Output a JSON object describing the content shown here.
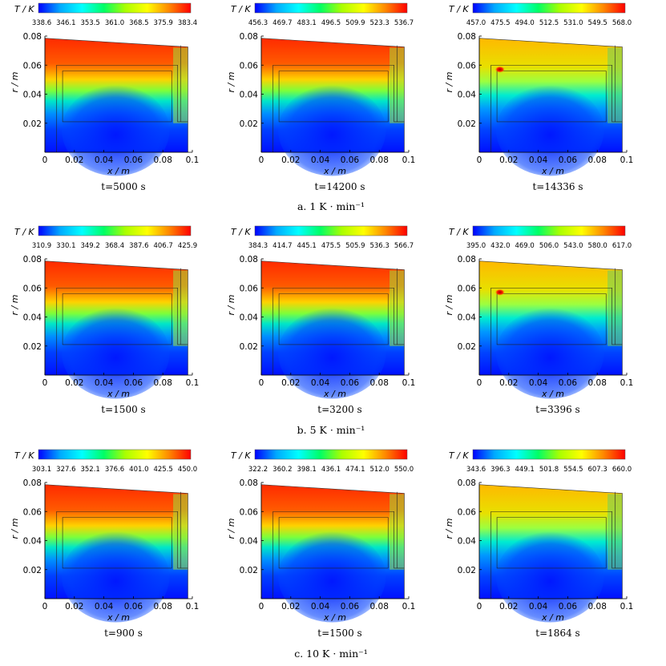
{
  "rows": [
    {
      "caption": "a. 1 K · min⁻¹",
      "panels": [
        {
          "cbar_title": "T / K",
          "ticks": [
            "338.6",
            "346.1",
            "353.5",
            "361.0",
            "368.5",
            "375.9",
            "383.4"
          ],
          "time": "t=5000 s",
          "hot_intensity": 1.0,
          "cold_intensity": 1.0
        },
        {
          "cbar_title": "T / K",
          "ticks": [
            "456.3",
            "469.7",
            "483.1",
            "496.5",
            "509.9",
            "523.3",
            "536.7"
          ],
          "time": "t=14200 s",
          "hot_intensity": 1.0,
          "cold_intensity": 1.0
        },
        {
          "cbar_title": "T / K",
          "ticks": [
            "457.0",
            "475.5",
            "494.0",
            "512.5",
            "531.0",
            "549.5",
            "568.0"
          ],
          "time": "t=14336 s",
          "hot_intensity": 0.35,
          "cold_intensity": 1.0,
          "hotspot": true
        }
      ]
    },
    {
      "caption": "b. 5 K · min⁻¹",
      "panels": [
        {
          "cbar_title": "T / K",
          "ticks": [
            "310.9",
            "330.1",
            "349.2",
            "368.4",
            "387.6",
            "406.7",
            "425.9"
          ],
          "time": "t=1500 s",
          "hot_intensity": 1.0,
          "cold_intensity": 1.0
        },
        {
          "cbar_title": "T / K",
          "ticks": [
            "384.3",
            "414.7",
            "445.1",
            "475.5",
            "505.9",
            "536.3",
            "566.7"
          ],
          "time": "t=3200 s",
          "hot_intensity": 1.0,
          "cold_intensity": 1.0
        },
        {
          "cbar_title": "T / K",
          "ticks": [
            "395.0",
            "432.0",
            "469.0",
            "506.0",
            "543.0",
            "580.0",
            "617.0"
          ],
          "time": "t=3396 s",
          "hot_intensity": 0.45,
          "cold_intensity": 1.0,
          "hotspot": true
        }
      ]
    },
    {
      "caption": "c. 10 K · min⁻¹",
      "panels": [
        {
          "cbar_title": "T / K",
          "ticks": [
            "303.1",
            "327.6",
            "352.1",
            "376.6",
            "401.0",
            "425.5",
            "450.0"
          ],
          "time": "t=900 s",
          "hot_intensity": 1.0,
          "cold_intensity": 1.0
        },
        {
          "cbar_title": "T / K",
          "ticks": [
            "322.2",
            "360.2",
            "398.1",
            "436.1",
            "474.1",
            "512.0",
            "550.0"
          ],
          "time": "t=1500 s",
          "hot_intensity": 1.0,
          "cold_intensity": 1.0
        },
        {
          "cbar_title": "T / K",
          "ticks": [
            "343.6",
            "396.3",
            "449.1",
            "501.8",
            "554.5",
            "607.3",
            "660.0"
          ],
          "time": "t=1864 s",
          "hot_intensity": 0.45,
          "cold_intensity": 1.0
        }
      ]
    }
  ],
  "chart_data": {
    "type": "heatmap",
    "xlabel": "x / m",
    "ylabel": "r / m",
    "xticks": [
      "0",
      "0.02",
      "0.04",
      "0.06",
      "0.08",
      "0.1"
    ],
    "yticks": [
      "0.02",
      "0.04",
      "0.06",
      "0.08"
    ],
    "xlim": [
      0,
      0.1
    ],
    "ylim": [
      0,
      0.08
    ],
    "colormap": [
      "#0000ff",
      "#00aaff",
      "#00ffff",
      "#00ff66",
      "#aaff00",
      "#ffff00",
      "#ff8800",
      "#ff0000"
    ]
  }
}
